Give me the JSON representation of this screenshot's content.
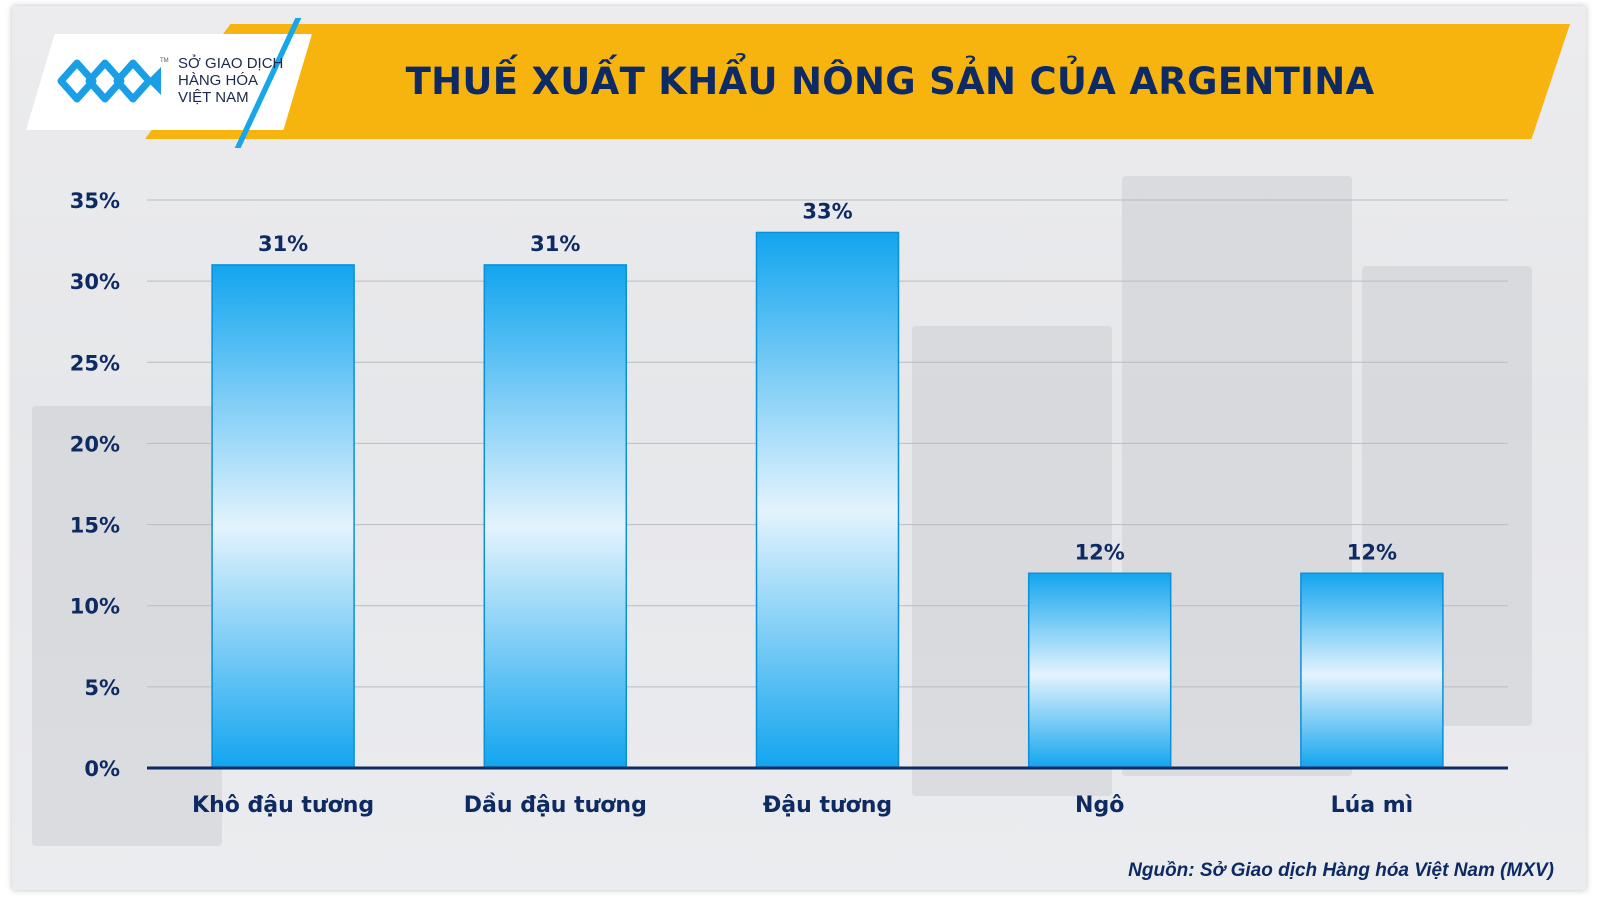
{
  "header": {
    "title": "THUẾ XUẤT KHẨU NÔNG SẢN CỦA ARGENTINA",
    "logo_lines": [
      "SỞ GIAO DỊCH",
      "HÀNG HÓA",
      "VIỆT NAM"
    ],
    "logo_tm": "TM",
    "banner_color": "#f7b40e",
    "title_color": "#0e2a63"
  },
  "chart_data": {
    "type": "bar",
    "title": "THUẾ XUẤT KHẨU NÔNG SẢN CỦA ARGENTINA",
    "categories": [
      "Khô đậu tương",
      "Dầu đậu tương",
      "Đậu tương",
      "Ngô",
      "Lúa mì"
    ],
    "values": [
      31,
      31,
      33,
      12,
      12
    ],
    "data_labels": [
      "31%",
      "31%",
      "33%",
      "12%",
      "12%"
    ],
    "yticks": [
      0,
      5,
      10,
      15,
      20,
      25,
      30,
      35
    ],
    "ytick_labels": [
      "0%",
      "5%",
      "10%",
      "15%",
      "20%",
      "25%",
      "30%",
      "35%"
    ],
    "ylim": [
      0,
      35
    ],
    "grid": true,
    "legend": "none",
    "bar_color": "#12a5ef",
    "bar_highlight_color": "#e3f3fd",
    "xlabel": "",
    "ylabel": ""
  },
  "footer": {
    "source": "Nguồn: Sở Giao dịch Hàng hóa Việt Nam (MXV)"
  }
}
